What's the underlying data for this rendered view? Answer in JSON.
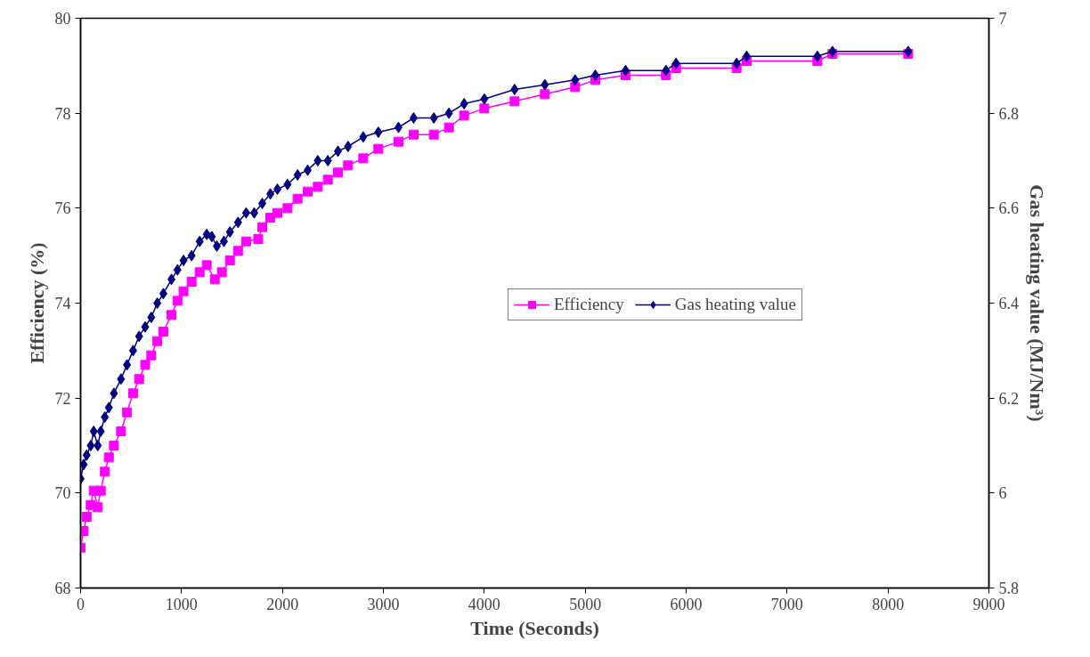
{
  "chart_data": {
    "type": "line",
    "xlabel": "Time (Seconds)",
    "ylabel": "Efficiency (%)",
    "y2label": "Gas heating value (MJ/Nm³)",
    "xlim": [
      0,
      9000
    ],
    "xticks": [
      0,
      1000,
      2000,
      3000,
      4000,
      5000,
      6000,
      7000,
      8000,
      9000
    ],
    "ylim": [
      68,
      80
    ],
    "yticks": [
      68,
      70,
      72,
      74,
      76,
      78,
      80
    ],
    "y2lim": [
      5.8,
      7
    ],
    "y2ticks": [
      5.8,
      6,
      6.2,
      6.4,
      6.6,
      6.8,
      7
    ],
    "grid": false,
    "legend": "right",
    "series": [
      {
        "name": "Efficiency",
        "color": "#ff00ff",
        "marker": "square",
        "x": [
          0,
          30,
          60,
          100,
          130,
          170,
          200,
          240,
          280,
          330,
          400,
          460,
          520,
          580,
          640,
          700,
          760,
          820,
          900,
          960,
          1020,
          1100,
          1180,
          1250,
          1330,
          1400,
          1480,
          1560,
          1640,
          1760,
          1800,
          1880,
          1950,
          2050,
          2150,
          2250,
          2350,
          2450,
          2550,
          2650,
          2800,
          2950,
          3150,
          3300,
          3500,
          3650,
          3800,
          4000,
          4300,
          4600,
          4900,
          5100,
          5400,
          5800,
          5900,
          6500,
          6600,
          7300,
          7450,
          8200
        ],
        "values": [
          68.85,
          69.2,
          69.5,
          69.75,
          70.05,
          69.7,
          70.05,
          70.45,
          70.75,
          71.0,
          71.3,
          71.7,
          72.1,
          72.4,
          72.7,
          72.9,
          73.2,
          73.4,
          73.75,
          74.05,
          74.25,
          74.45,
          74.65,
          74.8,
          74.5,
          74.65,
          74.9,
          75.1,
          75.3,
          75.35,
          75.6,
          75.8,
          75.9,
          76.0,
          76.2,
          76.35,
          76.45,
          76.6,
          76.75,
          76.9,
          77.05,
          77.25,
          77.4,
          77.55,
          77.55,
          77.7,
          77.95,
          78.1,
          78.25,
          78.4,
          78.55,
          78.7,
          78.8,
          78.8,
          78.95,
          78.95,
          79.1,
          79.1,
          79.25,
          79.25
        ]
      },
      {
        "name": "Gas heating value",
        "color": "#000080",
        "marker": "diamond",
        "axis": "y2",
        "x": [
          0,
          30,
          60,
          100,
          130,
          170,
          200,
          240,
          280,
          330,
          400,
          460,
          520,
          580,
          640,
          700,
          760,
          820,
          900,
          960,
          1020,
          1100,
          1180,
          1250,
          1300,
          1350,
          1420,
          1480,
          1560,
          1640,
          1720,
          1800,
          1880,
          1950,
          2050,
          2150,
          2250,
          2350,
          2450,
          2550,
          2650,
          2800,
          2950,
          3150,
          3300,
          3500,
          3650,
          3800,
          4000,
          4300,
          4600,
          4900,
          5100,
          5400,
          5800,
          5900,
          6500,
          6600,
          7300,
          7450,
          8200
        ],
        "values": [
          6.03,
          6.06,
          6.08,
          6.1,
          6.13,
          6.1,
          6.13,
          6.16,
          6.18,
          6.21,
          6.24,
          6.27,
          6.3,
          6.33,
          6.35,
          6.37,
          6.4,
          6.42,
          6.45,
          6.47,
          6.49,
          6.5,
          6.53,
          6.545,
          6.54,
          6.52,
          6.53,
          6.55,
          6.57,
          6.59,
          6.59,
          6.61,
          6.63,
          6.64,
          6.65,
          6.67,
          6.68,
          6.7,
          6.7,
          6.72,
          6.73,
          6.75,
          6.76,
          6.77,
          6.79,
          6.79,
          6.8,
          6.82,
          6.83,
          6.85,
          6.86,
          6.87,
          6.88,
          6.89,
          6.89,
          6.905,
          6.905,
          6.92,
          6.92,
          6.93,
          6.93
        ]
      }
    ]
  }
}
